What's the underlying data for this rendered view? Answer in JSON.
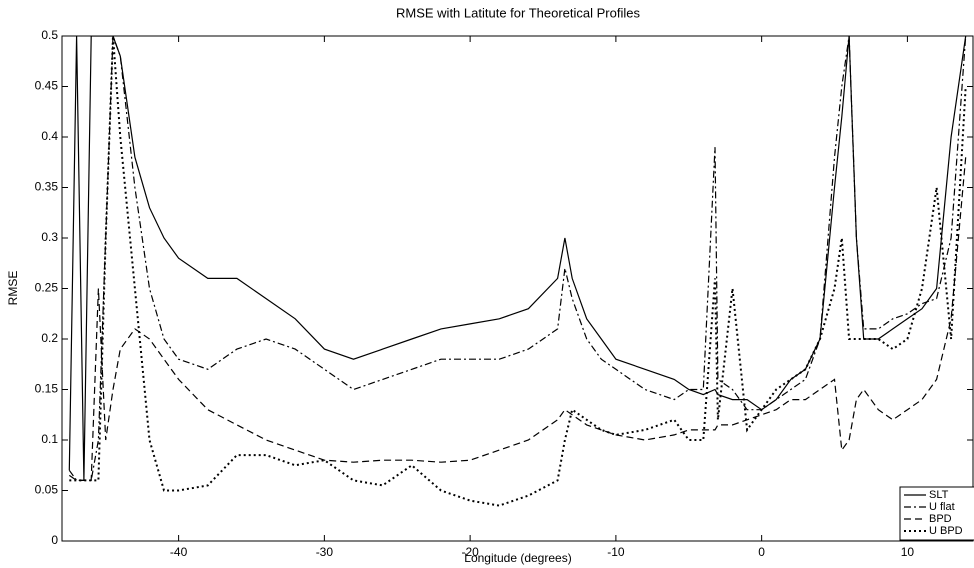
{
  "chart_data": {
    "type": "line",
    "title": "RMSE with Latitute for Theoretical Profiles",
    "xlabel": "Longitude (degrees)",
    "ylabel": "RMSE",
    "x": [
      -47.5,
      -47,
      -46.5,
      -46,
      -45.5,
      -45,
      -44.5,
      -44,
      -43,
      -42,
      -41,
      -40,
      -38,
      -36,
      -34,
      -32,
      -30,
      -28,
      -26,
      -24,
      -22,
      -20,
      -18,
      -16,
      -14,
      -13.5,
      -13,
      -12,
      -11,
      -10,
      -8,
      -6,
      -5,
      -4,
      -3.2,
      -3,
      -2,
      -1,
      0,
      1,
      2,
      3,
      4,
      5,
      5.5,
      6,
      6.5,
      7,
      8,
      9,
      10,
      11,
      12,
      13,
      14
    ],
    "series": [
      {
        "name": "SLT",
        "color": "#000000",
        "dash": "solid",
        "values": [
          0.07,
          0.5,
          0.06,
          0.5,
          0.5,
          0.5,
          0.5,
          0.48,
          0.38,
          0.33,
          0.3,
          0.28,
          0.26,
          0.26,
          0.24,
          0.22,
          0.19,
          0.18,
          0.19,
          0.2,
          0.21,
          0.215,
          0.22,
          0.23,
          0.26,
          0.3,
          0.26,
          0.22,
          0.2,
          0.18,
          0.17,
          0.16,
          0.15,
          0.145,
          0.15,
          0.145,
          0.14,
          0.14,
          0.13,
          0.14,
          0.16,
          0.17,
          0.2,
          0.35,
          0.42,
          0.5,
          0.3,
          0.2,
          0.2,
          0.21,
          0.22,
          0.23,
          0.25,
          0.4,
          0.5
        ]
      },
      {
        "name": "U flat",
        "color": "#000000",
        "dash": "dashdot",
        "values": [
          0.07,
          0.06,
          0.06,
          0.06,
          0.1,
          0.3,
          0.5,
          0.48,
          0.35,
          0.25,
          0.2,
          0.18,
          0.17,
          0.19,
          0.2,
          0.19,
          0.17,
          0.15,
          0.16,
          0.17,
          0.18,
          0.18,
          0.18,
          0.19,
          0.21,
          0.27,
          0.24,
          0.2,
          0.18,
          0.17,
          0.15,
          0.14,
          0.15,
          0.15,
          0.39,
          0.16,
          0.15,
          0.13,
          0.13,
          0.14,
          0.15,
          0.16,
          0.2,
          0.38,
          0.45,
          0.5,
          0.3,
          0.21,
          0.21,
          0.22,
          0.225,
          0.235,
          0.24,
          0.3,
          0.5
        ]
      },
      {
        "name": "BPD",
        "color": "#000000",
        "dash": "dashed",
        "values": [
          0.065,
          0.06,
          0.06,
          0.06,
          0.25,
          0.1,
          0.15,
          0.19,
          0.21,
          0.2,
          0.18,
          0.16,
          0.13,
          0.115,
          0.1,
          0.09,
          0.08,
          0.078,
          0.08,
          0.08,
          0.078,
          0.08,
          0.09,
          0.1,
          0.12,
          0.13,
          0.125,
          0.115,
          0.11,
          0.105,
          0.1,
          0.105,
          0.11,
          0.11,
          0.11,
          0.115,
          0.115,
          0.12,
          0.125,
          0.13,
          0.14,
          0.14,
          0.15,
          0.16,
          0.09,
          0.1,
          0.14,
          0.15,
          0.13,
          0.12,
          0.13,
          0.14,
          0.16,
          0.22,
          0.38
        ]
      },
      {
        "name": "U BPD",
        "color": "#000000",
        "dash": "dotted",
        "values": [
          0.06,
          0.06,
          0.06,
          0.06,
          0.06,
          0.3,
          0.5,
          0.4,
          0.25,
          0.1,
          0.05,
          0.05,
          0.055,
          0.085,
          0.085,
          0.075,
          0.08,
          0.06,
          0.055,
          0.075,
          0.05,
          0.04,
          0.035,
          0.045,
          0.06,
          0.1,
          0.13,
          0.12,
          0.11,
          0.105,
          0.11,
          0.12,
          0.1,
          0.1,
          0.26,
          0.12,
          0.25,
          0.11,
          0.13,
          0.15,
          0.16,
          0.17,
          0.2,
          0.25,
          0.3,
          0.2,
          0.2,
          0.2,
          0.2,
          0.19,
          0.2,
          0.25,
          0.35,
          0.2,
          0.45
        ]
      }
    ],
    "xlim": [
      -48,
      14.5
    ],
    "xticks": [
      -40,
      -30,
      -20,
      -10,
      0,
      10
    ],
    "ylim": [
      0,
      0.5
    ],
    "yticks": [
      0,
      0.05,
      0.1,
      0.15,
      0.2,
      0.25,
      0.3,
      0.35,
      0.4,
      0.45,
      0.5
    ],
    "legend": "lower right"
  }
}
